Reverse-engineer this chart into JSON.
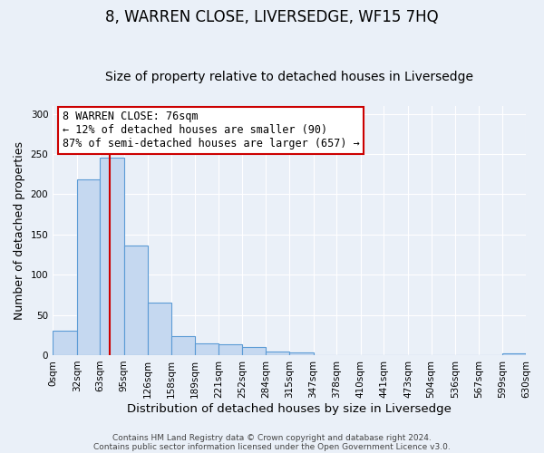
{
  "title": "8, WARREN CLOSE, LIVERSEDGE, WF15 7HQ",
  "subtitle": "Size of property relative to detached houses in Liversedge",
  "xlabel": "Distribution of detached houses by size in Liversedge",
  "ylabel": "Number of detached properties",
  "bin_edges": [
    0,
    32,
    63,
    95,
    126,
    158,
    189,
    221,
    252,
    284,
    315,
    347,
    378,
    410,
    441,
    473,
    504,
    536,
    567,
    599,
    630
  ],
  "bar_heights": [
    30,
    218,
    246,
    136,
    65,
    24,
    15,
    13,
    10,
    4,
    3,
    0,
    0,
    0,
    0,
    0,
    0,
    0,
    0,
    2
  ],
  "tick_labels": [
    "0sqm",
    "32sqm",
    "63sqm",
    "95sqm",
    "126sqm",
    "158sqm",
    "189sqm",
    "221sqm",
    "252sqm",
    "284sqm",
    "315sqm",
    "347sqm",
    "378sqm",
    "410sqm",
    "441sqm",
    "473sqm",
    "504sqm",
    "536sqm",
    "567sqm",
    "599sqm",
    "630sqm"
  ],
  "bar_color": "#c5d8f0",
  "bar_edge_color": "#5b9bd5",
  "vline_x": 76,
  "vline_color": "#cc0000",
  "annotation_box_text": "8 WARREN CLOSE: 76sqm\n← 12% of detached houses are smaller (90)\n87% of semi-detached houses are larger (657) →",
  "ylim": [
    0,
    310
  ],
  "yticks": [
    0,
    50,
    100,
    150,
    200,
    250,
    300
  ],
  "background_color": "#eaf0f8",
  "plot_bg_color": "#eaf0f8",
  "grid_color": "#ffffff",
  "footer_line1": "Contains HM Land Registry data © Crown copyright and database right 2024.",
  "footer_line2": "Contains public sector information licensed under the Open Government Licence v3.0.",
  "title_fontsize": 12,
  "subtitle_fontsize": 10,
  "xlabel_fontsize": 9.5,
  "ylabel_fontsize": 9,
  "tick_fontsize": 7.5,
  "annotation_fontsize": 8.5,
  "footer_fontsize": 6.5
}
